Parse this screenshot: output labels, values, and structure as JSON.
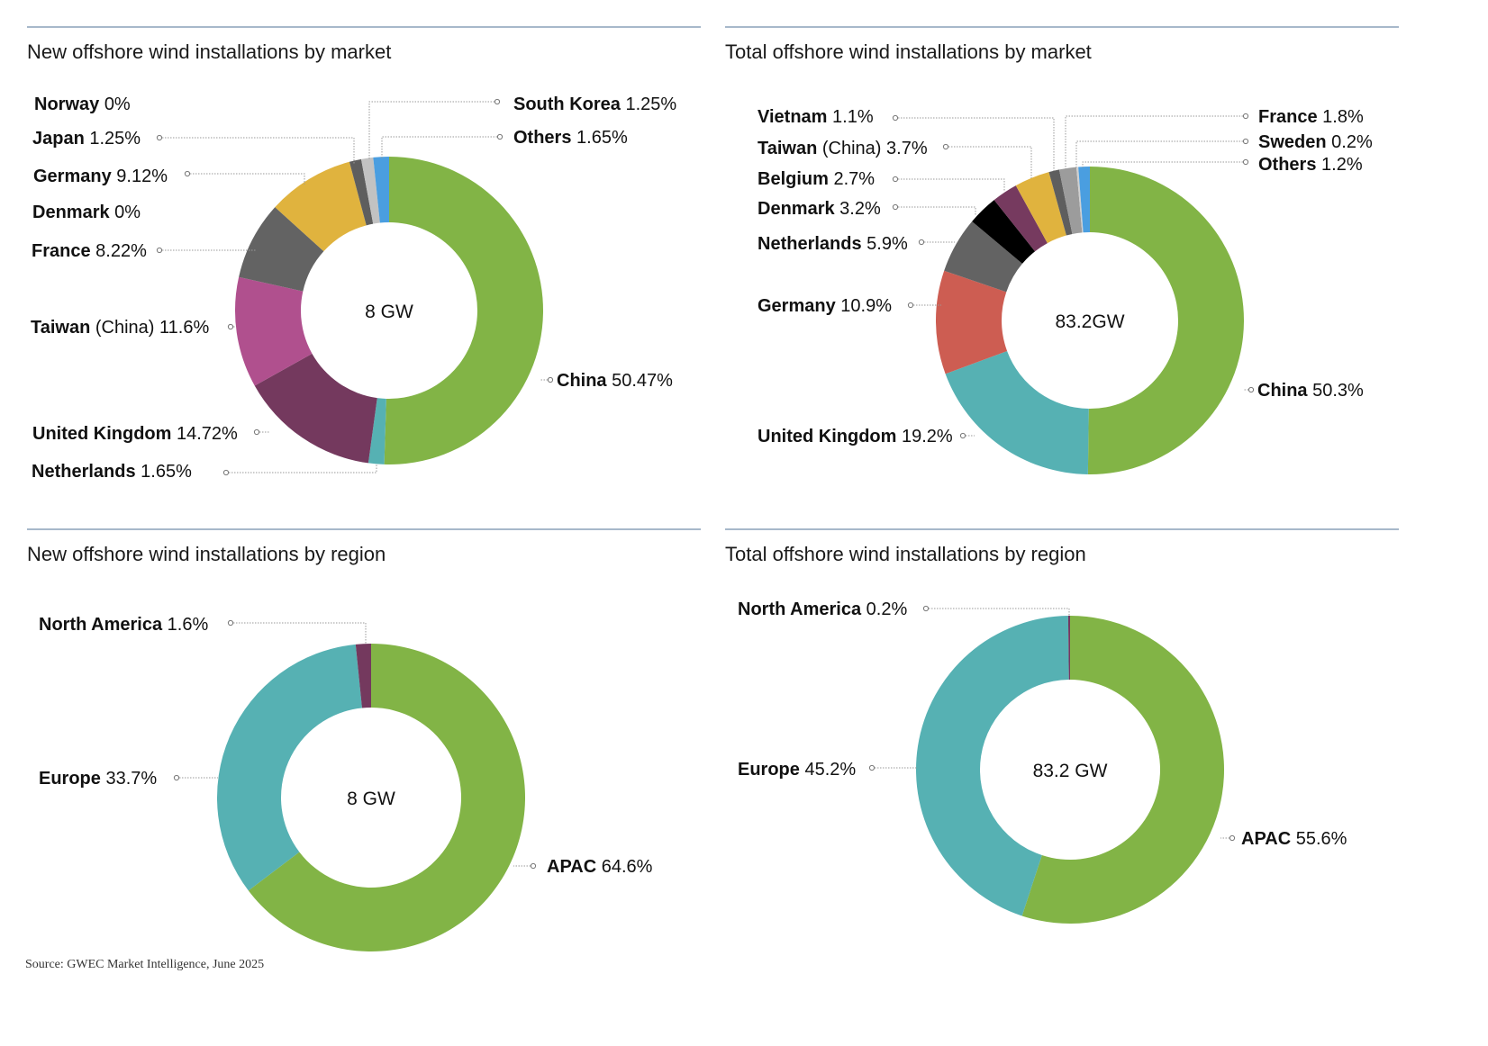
{
  "source": "Source: GWEC Market Intelligence, June 2025",
  "chart_data": [
    {
      "type": "pie",
      "title": "New offshore wind installations by market",
      "center_label": "8 GW",
      "slices": [
        {
          "label": "China",
          "value": 50.47,
          "display": "50.47%",
          "color": "#82b446"
        },
        {
          "label": "Netherlands",
          "value": 1.65,
          "display": "1.65%",
          "color": "#56b1b3"
        },
        {
          "label": "United Kingdom",
          "value": 14.72,
          "display": "14.72%",
          "color": "#74395e"
        },
        {
          "label": "Taiwan",
          "qualifier": "(China)",
          "value": 11.6,
          "display": "11.6%",
          "color": "#b0508e"
        },
        {
          "label": "France",
          "value": 8.22,
          "display": "8.22%",
          "color": "#636363"
        },
        {
          "label": "Denmark",
          "value": 0,
          "display": "0%",
          "color": "#000000"
        },
        {
          "label": "Germany",
          "value": 9.12,
          "display": "9.12%",
          "color": "#e0b33e"
        },
        {
          "label": "Norway",
          "value": 0,
          "display": "0%",
          "color": "#888888"
        },
        {
          "label": "Japan",
          "value": 1.25,
          "display": "1.25%",
          "color": "#5e5e5e"
        },
        {
          "label": "South Korea",
          "value": 1.25,
          "display": "1.25%",
          "color": "#c2c2c2"
        },
        {
          "label": "Others",
          "value": 1.65,
          "display": "1.65%",
          "color": "#4a9ee0"
        }
      ]
    },
    {
      "type": "pie",
      "title": "Total offshore wind installations by market",
      "center_label": "83.2GW",
      "slices": [
        {
          "label": "China",
          "value": 50.3,
          "display": "50.3%",
          "color": "#82b446"
        },
        {
          "label": "United Kingdom",
          "value": 19.2,
          "display": "19.2%",
          "color": "#56b1b3"
        },
        {
          "label": "Germany",
          "value": 10.9,
          "display": "10.9%",
          "color": "#cd5d52"
        },
        {
          "label": "Netherlands",
          "value": 5.9,
          "display": "5.9%",
          "color": "#636363"
        },
        {
          "label": "Denmark",
          "value": 3.2,
          "display": "3.2%",
          "color": "#000000"
        },
        {
          "label": "Belgium",
          "value": 2.7,
          "display": "2.7%",
          "color": "#763a5f"
        },
        {
          "label": "Taiwan",
          "qualifier": "(China)",
          "value": 3.7,
          "display": "3.7%",
          "color": "#e0b33e"
        },
        {
          "label": "Vietnam",
          "value": 1.1,
          "display": "1.1%",
          "color": "#5e5e5e"
        },
        {
          "label": "France",
          "value": 1.8,
          "display": "1.8%",
          "color": "#9c9c9c"
        },
        {
          "label": "Sweden",
          "value": 0.2,
          "display": "0.2%",
          "color": "#d0d0d0"
        },
        {
          "label": "Others",
          "value": 1.2,
          "display": "1.2%",
          "color": "#4a9ee0"
        }
      ]
    },
    {
      "type": "pie",
      "title": "New offshore wind installations by region",
      "center_label": "8 GW",
      "slices": [
        {
          "label": "APAC",
          "value": 64.6,
          "display": "64.6%",
          "color": "#82b446"
        },
        {
          "label": "Europe",
          "value": 33.7,
          "display": "33.7%",
          "color": "#56b1b3"
        },
        {
          "label": "North America",
          "value": 1.6,
          "display": "1.6%",
          "color": "#74395e"
        }
      ]
    },
    {
      "type": "pie",
      "title": "Total offshore wind installations by region",
      "center_label": "83.2 GW",
      "slices": [
        {
          "label": "APAC",
          "value": 55.6,
          "display": "55.6%",
          "color": "#82b446"
        },
        {
          "label": "Europe",
          "value": 45.2,
          "display": "45.2%",
          "color": "#56b1b3"
        },
        {
          "label": "North America",
          "value": 0.2,
          "display": "0.2%",
          "color": "#74395e"
        }
      ]
    }
  ]
}
